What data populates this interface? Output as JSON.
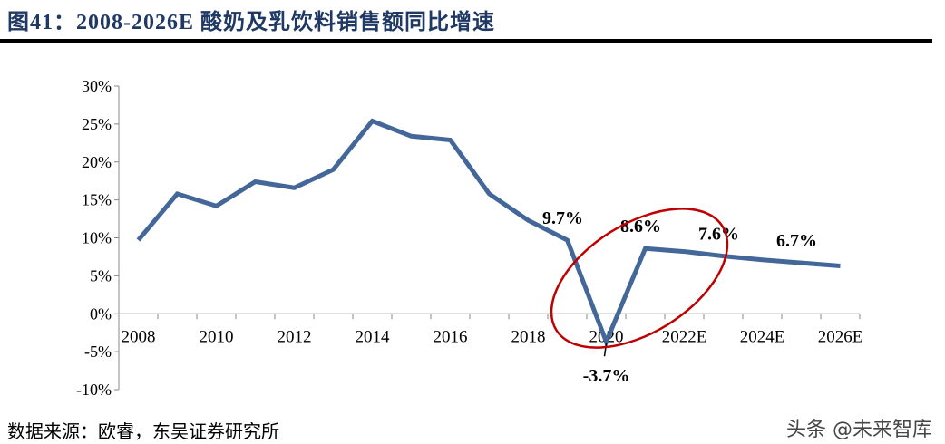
{
  "title": "图41：2008-2026E 酸奶及乳饮料销售额同比增速",
  "source": "数据来源：欧睿，东吴证券研究所",
  "watermark": "头条 @未来智库",
  "chart_data": {
    "type": "line",
    "title": "",
    "xlabel": "",
    "ylabel": "",
    "x": [
      "2008",
      "2009",
      "2010",
      "2011",
      "2012",
      "2013",
      "2014",
      "2015",
      "2016",
      "2017",
      "2018",
      "2019",
      "2020",
      "2021",
      "2022E",
      "2023E",
      "2024E",
      "2025E",
      "2026E"
    ],
    "x_tick_labels": [
      "2008",
      "2010",
      "2012",
      "2014",
      "2016",
      "2018",
      "2020",
      "2022E",
      "2024E",
      "2026E"
    ],
    "series": [
      {
        "values": [
          9.7,
          15.8,
          14.2,
          17.4,
          16.6,
          19.0,
          25.4,
          23.4,
          22.9,
          15.8,
          12.3,
          9.7,
          -3.7,
          8.6,
          8.2,
          7.6,
          7.1,
          6.7,
          6.3
        ],
        "color": "#44679a"
      }
    ],
    "ylim": [
      -10,
      30
    ],
    "y_ticks": [
      -10,
      -5,
      0,
      5,
      10,
      15,
      20,
      25,
      30
    ],
    "y_format": "percent",
    "annotations": [
      {
        "x": "2019",
        "text": "9.7%"
      },
      {
        "x": "2020",
        "text": "-3.7%"
      },
      {
        "x": "2021",
        "text": "8.6%"
      },
      {
        "x": "2023E",
        "text": "7.6%"
      },
      {
        "x": "2025E",
        "text": "6.7%"
      }
    ],
    "highlight_ellipse_color": "#c00000",
    "grid": false,
    "legend": "none"
  }
}
